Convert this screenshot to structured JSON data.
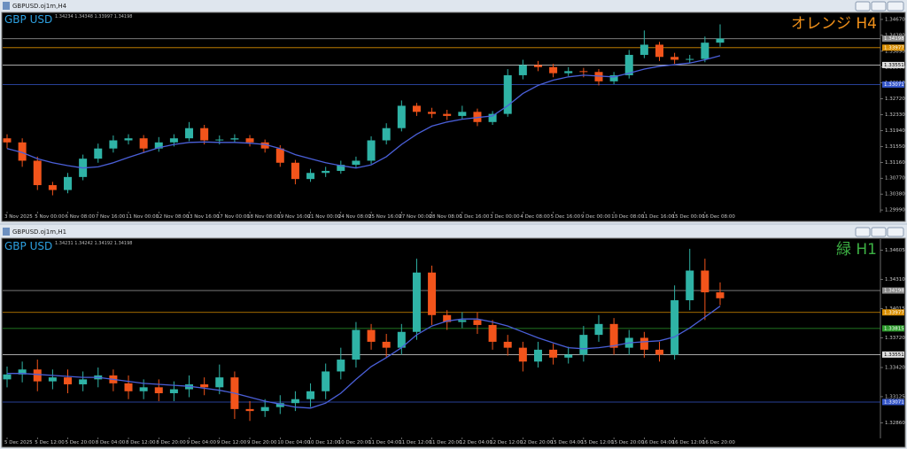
{
  "windows": [
    {
      "title": "GBPUSD.oj1m,H4"
    },
    {
      "title": "GBPUSD.oj1m,H1"
    }
  ],
  "chart_data": [
    {
      "type": "candlestick",
      "title": "GBP USD",
      "info": "1.34234 1.34348 1.33997 1.34198",
      "annotation": "オレンジ H4",
      "annotation_color": "#f0901a",
      "up_color": "#2fb3a6",
      "down_color": "#f2541b",
      "categories": [
        "3 Nov 2025",
        null,
        "5 Nov 00:00",
        null,
        "6 Nov 08:00",
        null,
        "7 Nov 16:00",
        null,
        "11 Nov 00:00",
        null,
        "12 Nov 08:00",
        null,
        "13 Nov 16:00",
        null,
        "17 Nov 00:00",
        null,
        "18 Nov 08:00",
        null,
        "19 Nov 16:00",
        null,
        "21 Nov 00:00",
        null,
        "24 Nov 08:00",
        null,
        "25 Nov 16:00",
        null,
        "27 Nov 00:00",
        null,
        "28 Nov 08:00",
        null,
        "1 Dec 16:00",
        null,
        "3 Dec 00:00",
        null,
        "4 Dec 08:00",
        null,
        "5 Dec 16:00",
        null,
        "9 Dec 00:00",
        null,
        "10 Dec 08:00",
        null,
        "11 Dec 16:00",
        null,
        "15 Dec 00:00",
        null,
        "16 Dec 08:00",
        null
      ],
      "open": [
        1.3175,
        1.3165,
        1.312,
        1.306,
        1.3048,
        1.308,
        1.3125,
        1.315,
        1.317,
        1.3175,
        1.315,
        1.3165,
        1.3175,
        1.32,
        1.317,
        1.3172,
        1.3175,
        1.3165,
        1.315,
        1.3115,
        1.3075,
        1.309,
        1.3095,
        1.311,
        1.312,
        1.317,
        1.32,
        1.3255,
        1.324,
        1.3235,
        1.323,
        1.324,
        1.3215,
        1.3235,
        1.333,
        1.3355,
        1.335,
        1.3335,
        1.334,
        1.3338,
        1.3315,
        1.333,
        1.338,
        1.3405,
        1.3375,
        1.3368,
        1.337,
        1.341
      ],
      "high": [
        1.3185,
        1.3175,
        1.313,
        1.3068,
        1.309,
        1.3135,
        1.3162,
        1.3182,
        1.3185,
        1.3183,
        1.3178,
        1.3185,
        1.3215,
        1.3208,
        1.3182,
        1.3185,
        1.3183,
        1.3172,
        1.3158,
        1.3122,
        1.31,
        1.3105,
        1.312,
        1.313,
        1.318,
        1.3212,
        1.3268,
        1.3262,
        1.325,
        1.3245,
        1.3255,
        1.3248,
        1.3242,
        1.3345,
        1.3368,
        1.3365,
        1.3358,
        1.335,
        1.3348,
        1.3345,
        1.3338,
        1.3392,
        1.344,
        1.3412,
        1.3385,
        1.338,
        1.3425,
        1.3455
      ],
      "low": [
        1.315,
        1.3105,
        1.3048,
        1.3035,
        1.304,
        1.3072,
        1.3115,
        1.314,
        1.316,
        1.314,
        1.3142,
        1.3155,
        1.3168,
        1.316,
        1.316,
        1.3165,
        1.3155,
        1.314,
        1.3105,
        1.3062,
        1.3068,
        1.308,
        1.3088,
        1.3102,
        1.3112,
        1.316,
        1.3192,
        1.323,
        1.3225,
        1.322,
        1.3222,
        1.3205,
        1.3208,
        1.3228,
        1.332,
        1.334,
        1.3325,
        1.3328,
        1.3325,
        1.3305,
        1.3308,
        1.3322,
        1.3372,
        1.3365,
        1.3358,
        1.336,
        1.3362,
        1.34
      ],
      "close": [
        1.3165,
        1.312,
        1.306,
        1.3048,
        1.308,
        1.3125,
        1.315,
        1.317,
        1.3175,
        1.315,
        1.3165,
        1.3175,
        1.32,
        1.317,
        1.3172,
        1.3175,
        1.3165,
        1.315,
        1.3115,
        1.3075,
        1.309,
        1.3095,
        1.311,
        1.312,
        1.317,
        1.32,
        1.3255,
        1.324,
        1.3235,
        1.323,
        1.324,
        1.3215,
        1.3235,
        1.333,
        1.3355,
        1.335,
        1.3335,
        1.334,
        1.3338,
        1.3315,
        1.333,
        1.338,
        1.3405,
        1.3375,
        1.3368,
        1.337,
        1.341,
        1.342
      ],
      "ma": {
        "color": "#4a5fd8",
        "values": [
          1.315,
          1.314,
          1.3125,
          1.3115,
          1.3108,
          1.3102,
          1.3105,
          1.3115,
          1.3128,
          1.314,
          1.3152,
          1.316,
          1.3165,
          1.3166,
          1.3165,
          1.3165,
          1.3163,
          1.316,
          1.315,
          1.3135,
          1.3125,
          1.3115,
          1.3108,
          1.3102,
          1.311,
          1.313,
          1.316,
          1.3185,
          1.3205,
          1.3215,
          1.3222,
          1.3226,
          1.323,
          1.3255,
          1.3285,
          1.3305,
          1.3318,
          1.3326,
          1.333,
          1.3328,
          1.3326,
          1.3335,
          1.3345,
          1.3352,
          1.3356,
          1.336,
          1.3368,
          1.3378
        ]
      },
      "levels": [
        {
          "value": 1.34198,
          "color": "#8a8a8a"
        },
        {
          "value": 1.33977,
          "color": "#d98e00"
        },
        {
          "value": 1.33551,
          "color": "#e0e0e0"
        },
        {
          "value": 1.33071,
          "color": "#3556c8"
        }
      ],
      "ylim": [
        1.2997,
        1.348
      ],
      "yticks": [
        {
          "value": 1.2999,
          "label": "1.29990"
        },
        {
          "value": 1.3038,
          "label": "1.30380"
        },
        {
          "value": 1.3077,
          "label": "1.30770"
        },
        {
          "value": 1.3116,
          "label": "1.31160"
        },
        {
          "value": 1.3155,
          "label": "1.31550"
        },
        {
          "value": 1.3194,
          "label": "1.31940"
        },
        {
          "value": 1.3233,
          "label": "1.32330"
        },
        {
          "value": 1.3272,
          "label": "1.32720"
        },
        {
          "value": 1.3311,
          "label": "1.33110"
        },
        {
          "value": 1.335,
          "label": "1.33500"
        },
        {
          "value": 1.3389,
          "label": "1.33890"
        },
        {
          "value": 1.3428,
          "label": "1.34280"
        },
        {
          "value": 1.3467,
          "label": "1.34670"
        }
      ]
    },
    {
      "type": "candlestick",
      "title": "GBP USD",
      "info": "1.34231 1.34242 1.34192 1.34198",
      "annotation": "緑 H1",
      "annotation_color": "#3cb043",
      "up_color": "#2fb3a6",
      "down_color": "#f2541b",
      "categories": [
        "5 Dec 2025",
        null,
        "5 Dec 12:00",
        null,
        "5 Dec 20:00",
        null,
        "8 Dec 04:00",
        null,
        "8 Dec 12:00",
        null,
        "8 Dec 20:00",
        null,
        "9 Dec 04:00",
        null,
        "9 Dec 12:00",
        null,
        "9 Dec 20:00",
        null,
        "10 Dec 04:00",
        null,
        "10 Dec 12:00",
        null,
        "10 Dec 20:00",
        null,
        "11 Dec 04:00",
        null,
        "11 Dec 12:00",
        null,
        "11 Dec 20:00",
        null,
        "12 Dec 04:00",
        null,
        "12 Dec 12:00",
        null,
        "12 Dec 20:00",
        null,
        "15 Dec 04:00",
        null,
        "15 Dec 12:00",
        null,
        "15 Dec 20:00",
        null,
        "16 Dec 04:00",
        null,
        "16 Dec 12:00",
        null,
        "16 Dec 20:00",
        null
      ],
      "open": [
        1.333,
        1.3335,
        1.334,
        1.3328,
        1.3332,
        1.3325,
        1.333,
        1.3334,
        1.3326,
        1.3318,
        1.3322,
        1.3316,
        1.332,
        1.3325,
        1.3322,
        1.3332,
        1.33,
        1.3298,
        1.3302,
        1.3306,
        1.331,
        1.3318,
        1.3338,
        1.335,
        1.338,
        1.3368,
        1.3362,
        1.3378,
        1.3438,
        1.3395,
        1.3388,
        1.339,
        1.3385,
        1.3368,
        1.3362,
        1.3348,
        1.336,
        1.3352,
        1.3355,
        1.3375,
        1.3386,
        1.3362,
        1.3372,
        1.336,
        1.3355,
        1.341,
        1.344,
        1.3418
      ],
      "high": [
        1.3343,
        1.3348,
        1.335,
        1.334,
        1.334,
        1.3338,
        1.3342,
        1.334,
        1.3334,
        1.333,
        1.333,
        1.3328,
        1.3334,
        1.3332,
        1.3345,
        1.3338,
        1.3308,
        1.331,
        1.3314,
        1.3318,
        1.3326,
        1.3346,
        1.3362,
        1.3388,
        1.3386,
        1.3376,
        1.3386,
        1.3452,
        1.3445,
        1.34,
        1.3398,
        1.3398,
        1.339,
        1.3375,
        1.3368,
        1.3368,
        1.3366,
        1.3363,
        1.3384,
        1.3395,
        1.3392,
        1.338,
        1.3378,
        1.3368,
        1.3425,
        1.3462,
        1.3452,
        1.3428
      ],
      "low": [
        1.3322,
        1.3327,
        1.3318,
        1.332,
        1.3316,
        1.3318,
        1.3322,
        1.3318,
        1.331,
        1.331,
        1.3308,
        1.3308,
        1.3312,
        1.3314,
        1.3315,
        1.329,
        1.3288,
        1.3292,
        1.3295,
        1.3298,
        1.3302,
        1.331,
        1.333,
        1.3342,
        1.336,
        1.3352,
        1.3355,
        1.337,
        1.3385,
        1.338,
        1.3382,
        1.3376,
        1.336,
        1.3354,
        1.3338,
        1.3342,
        1.3345,
        1.3346,
        1.3348,
        1.3368,
        1.3355,
        1.3355,
        1.3352,
        1.3348,
        1.335,
        1.34,
        1.339,
        1.3405
      ],
      "close": [
        1.3335,
        1.334,
        1.3328,
        1.3332,
        1.3325,
        1.333,
        1.3334,
        1.3326,
        1.3318,
        1.3322,
        1.3316,
        1.332,
        1.3325,
        1.3322,
        1.3332,
        1.33,
        1.3298,
        1.3302,
        1.3306,
        1.331,
        1.3318,
        1.3338,
        1.335,
        1.338,
        1.3368,
        1.3362,
        1.3378,
        1.3438,
        1.3395,
        1.3388,
        1.339,
        1.3385,
        1.3368,
        1.3362,
        1.3348,
        1.336,
        1.3352,
        1.3355,
        1.3375,
        1.3386,
        1.3362,
        1.3372,
        1.336,
        1.3355,
        1.341,
        1.344,
        1.3418,
        1.3412
      ],
      "ma": {
        "color": "#4a5fd8",
        "values": [
          1.3336,
          1.3336,
          1.3335,
          1.3334,
          1.3333,
          1.3332,
          1.3332,
          1.333,
          1.3328,
          1.3326,
          1.3325,
          1.3324,
          1.3323,
          1.3321,
          1.3319,
          1.3316,
          1.3312,
          1.3308,
          1.3305,
          1.3302,
          1.3301,
          1.3306,
          1.3316,
          1.333,
          1.3343,
          1.3352,
          1.3362,
          1.3375,
          1.3384,
          1.3389,
          1.3391,
          1.3391,
          1.3388,
          1.3384,
          1.3378,
          1.3372,
          1.3367,
          1.3362,
          1.3361,
          1.3362,
          1.3364,
          1.3367,
          1.3368,
          1.3369,
          1.3373,
          1.3382,
          1.3393,
          1.3404
        ]
      },
      "levels": [
        {
          "value": 1.34198,
          "color": "#8a8a8a"
        },
        {
          "value": 1.33977,
          "color": "#d98e00"
        },
        {
          "value": 1.33815,
          "color": "#2c9a2c"
        },
        {
          "value": 1.33551,
          "color": "#e0e0e0"
        },
        {
          "value": 1.33071,
          "color": "#3556c8"
        }
      ],
      "ylim": [
        1.3282,
        1.347
      ],
      "yticks": [
        {
          "value": 1.3286,
          "label": "1.32860"
        },
        1.33125,
        {
          "value": 1.3342,
          "label": "1.33420"
        },
        {
          "value": 1.3372,
          "label": "1.33720"
        },
        1.34015,
        {
          "value": 1.3431,
          "label": "1.34310"
        },
        1.34605
      ]
    }
  ]
}
